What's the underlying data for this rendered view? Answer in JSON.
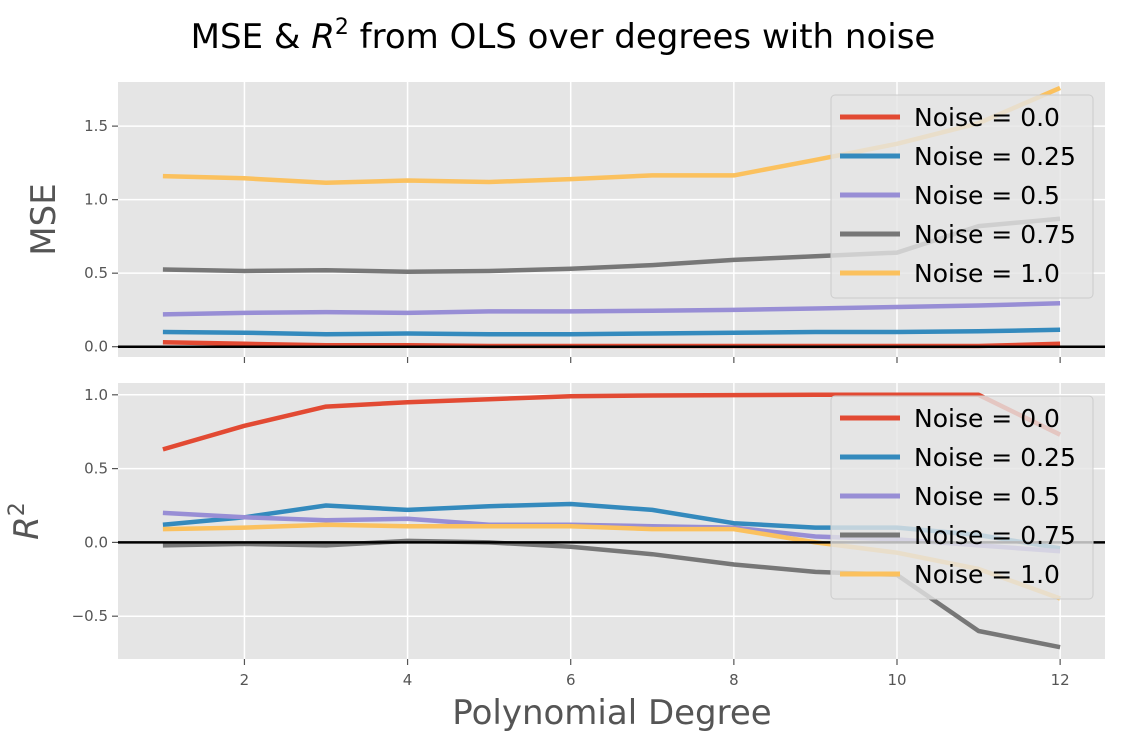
{
  "figure": {
    "title_prefix": "MSE & ",
    "title_suffix": " from OLS over degrees with noise",
    "r_symbol": "R",
    "r_exponent": "2",
    "xlabel": "Polynomial Degree"
  },
  "colors": {
    "panel_bg": "#e5e5e5",
    "grid": "#ffffff",
    "zero_line": "#000000",
    "tick_text": "#555555",
    "series": [
      "#e24a33",
      "#348abd",
      "#988ed5",
      "#777777",
      "#fbc15e"
    ]
  },
  "chart_data": [
    {
      "type": "line",
      "panel": "top",
      "ylabel": "MSE",
      "x": [
        1,
        2,
        3,
        4,
        5,
        6,
        7,
        8,
        9,
        10,
        11,
        12
      ],
      "xlim": [
        0.45,
        12.55
      ],
      "ylim": [
        -0.07,
        1.8
      ],
      "xticks": [
        2,
        4,
        6,
        8,
        10,
        12
      ],
      "yticks": [
        0.0,
        0.5,
        1.0,
        1.5
      ],
      "ytick_labels": [
        "0.0",
        "0.5",
        "1.0",
        "1.5"
      ],
      "show_x_tick_labels": false,
      "grid": true,
      "legend_position": "top-right",
      "series": [
        {
          "name": "Noise = 0.0",
          "values": [
            0.03,
            0.02,
            0.01,
            0.01,
            0.005,
            0.005,
            0.005,
            0.005,
            0.005,
            0.005,
            0.005,
            0.02
          ]
        },
        {
          "name": "Noise = 0.25",
          "values": [
            0.1,
            0.095,
            0.085,
            0.09,
            0.085,
            0.085,
            0.09,
            0.095,
            0.1,
            0.1,
            0.105,
            0.115
          ]
        },
        {
          "name": "Noise = 0.5",
          "values": [
            0.22,
            0.23,
            0.235,
            0.23,
            0.24,
            0.24,
            0.245,
            0.25,
            0.26,
            0.27,
            0.28,
            0.295
          ]
        },
        {
          "name": "Noise = 0.75",
          "values": [
            0.525,
            0.515,
            0.52,
            0.51,
            0.515,
            0.53,
            0.555,
            0.59,
            0.615,
            0.64,
            0.82,
            0.87
          ]
        },
        {
          "name": "Noise = 1.0",
          "values": [
            1.16,
            1.145,
            1.115,
            1.13,
            1.12,
            1.14,
            1.165,
            1.165,
            1.27,
            1.38,
            1.52,
            1.76
          ]
        }
      ]
    },
    {
      "type": "line",
      "panel": "bottom",
      "ylabel": "R^2",
      "x": [
        1,
        2,
        3,
        4,
        5,
        6,
        7,
        8,
        9,
        10,
        11,
        12
      ],
      "xlim": [
        0.45,
        12.55
      ],
      "ylim": [
        -0.79,
        1.08
      ],
      "xticks": [
        2,
        4,
        6,
        8,
        10,
        12
      ],
      "xtick_labels": [
        "2",
        "4",
        "6",
        "8",
        "10",
        "12"
      ],
      "yticks": [
        -0.5,
        0.0,
        0.5,
        1.0
      ],
      "ytick_labels": [
        "−0.5",
        "0.0",
        "0.5",
        "1.0"
      ],
      "show_x_tick_labels": true,
      "grid": true,
      "legend_position": "top-right",
      "series": [
        {
          "name": "Noise = 0.0",
          "values": [
            0.63,
            0.79,
            0.92,
            0.95,
            0.97,
            0.99,
            0.995,
            0.998,
            1.0,
            1.0,
            1.0,
            0.73
          ]
        },
        {
          "name": "Noise = 0.25",
          "values": [
            0.12,
            0.17,
            0.25,
            0.22,
            0.245,
            0.26,
            0.22,
            0.13,
            0.1,
            0.1,
            0.05,
            -0.04
          ]
        },
        {
          "name": "Noise = 0.5",
          "values": [
            0.2,
            0.17,
            0.15,
            0.16,
            0.12,
            0.12,
            0.11,
            0.1,
            0.04,
            0.02,
            -0.02,
            -0.06
          ]
        },
        {
          "name": "Noise = 0.75",
          "values": [
            -0.02,
            -0.01,
            -0.02,
            0.01,
            0.0,
            -0.03,
            -0.08,
            -0.15,
            -0.2,
            -0.22,
            -0.6,
            -0.71
          ]
        },
        {
          "name": "Noise = 1.0",
          "values": [
            0.09,
            0.1,
            0.12,
            0.11,
            0.11,
            0.11,
            0.09,
            0.09,
            0.0,
            -0.07,
            -0.18,
            -0.38
          ]
        }
      ]
    }
  ]
}
